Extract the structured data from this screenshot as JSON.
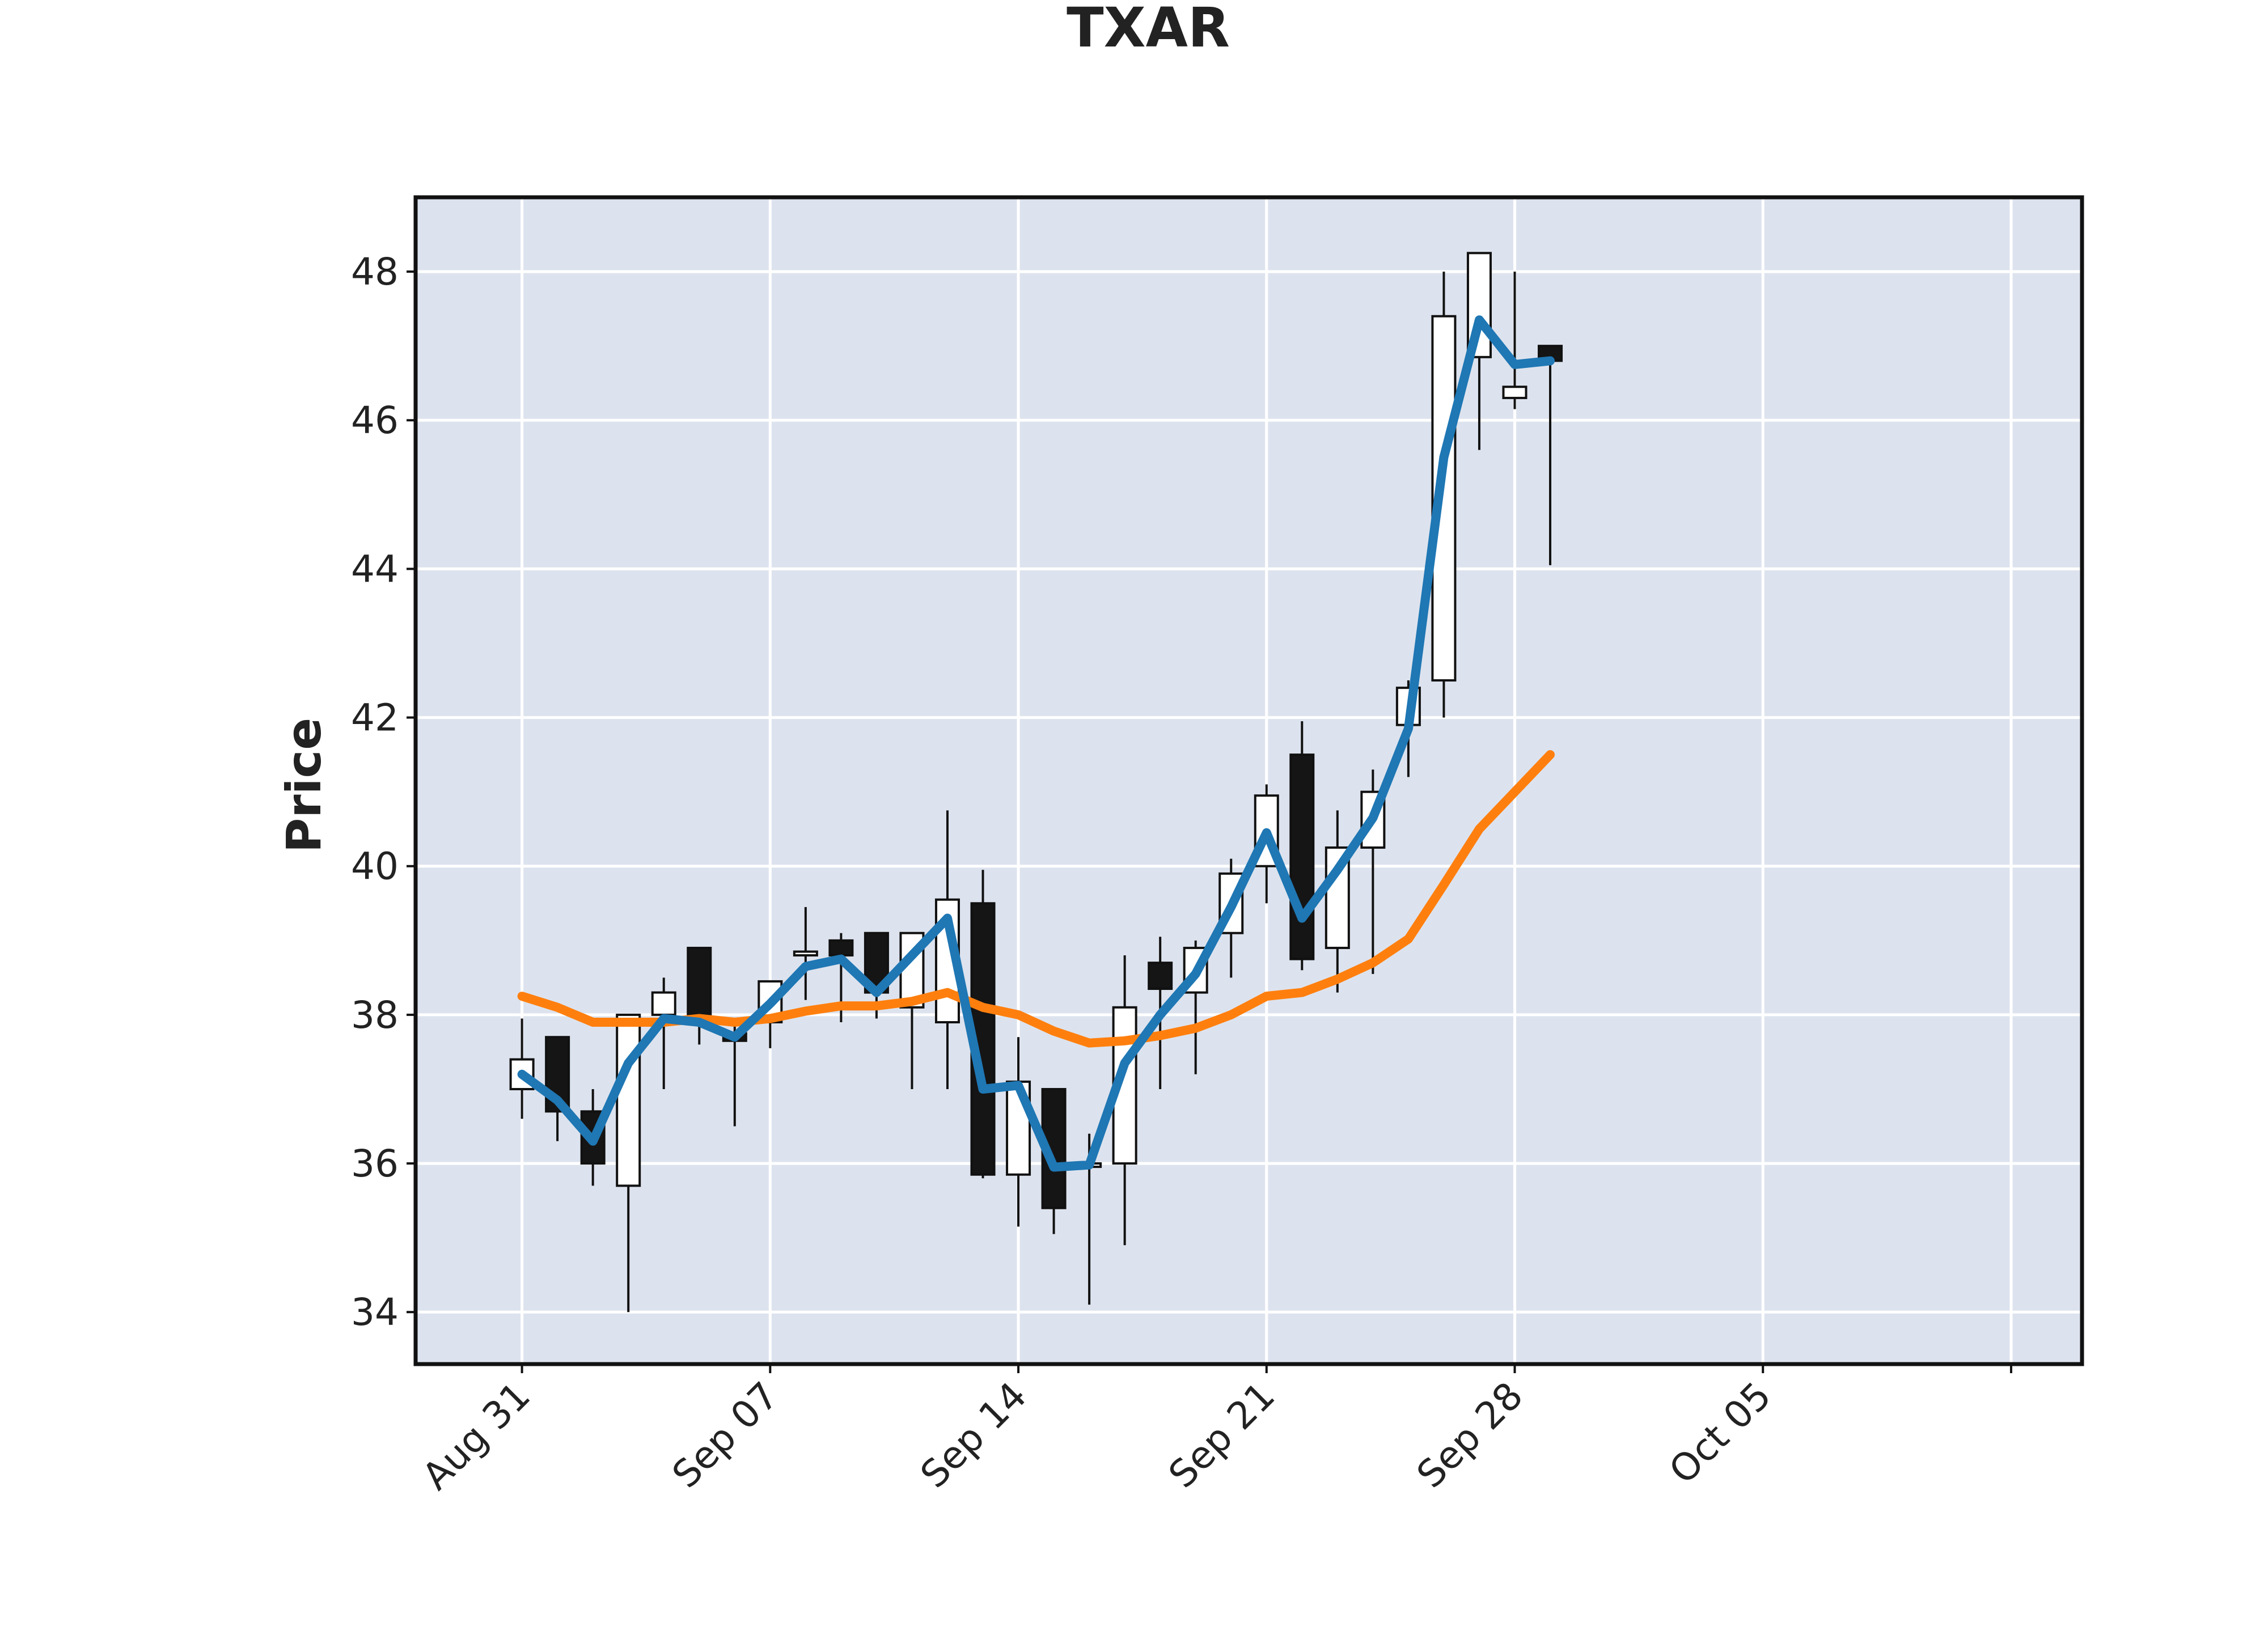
{
  "chart_data": {
    "type": "candlestick",
    "title": "TXAR",
    "ylabel": "Price",
    "xlabel": "",
    "ylim": [
      33.3,
      49.0
    ],
    "xlim": [
      "2020-08-28",
      "2020-10-14"
    ],
    "yticks": [
      34,
      36,
      38,
      40,
      42,
      44,
      46,
      48
    ],
    "xticks": [
      {
        "date": "2020-08-31",
        "label": "Aug 31"
      },
      {
        "date": "2020-09-07",
        "label": "Sep 07"
      },
      {
        "date": "2020-09-14",
        "label": "Sep 14"
      },
      {
        "date": "2020-09-21",
        "label": "Sep 21"
      },
      {
        "date": "2020-09-28",
        "label": "Sep 28"
      },
      {
        "date": "2020-10-05",
        "label": "Oct 05"
      }
    ],
    "grid": true,
    "colors": {
      "background": "#dde3ee",
      "up_body": "#ffffff",
      "down_body": "#151515",
      "ma_short": "#1f77b4",
      "ma_long": "#ff7f0e"
    },
    "candles": [
      {
        "date": "2020-08-31",
        "open": 37.0,
        "high": 37.95,
        "low": 36.6,
        "close": 37.4
      },
      {
        "date": "2020-09-01",
        "open": 37.7,
        "high": 37.7,
        "low": 36.3,
        "close": 36.7
      },
      {
        "date": "2020-09-02",
        "open": 36.7,
        "high": 37.0,
        "low": 35.7,
        "close": 36.0
      },
      {
        "date": "2020-09-03",
        "open": 35.7,
        "high": 38.0,
        "low": 34.0,
        "close": 38.0
      },
      {
        "date": "2020-09-04",
        "open": 38.0,
        "high": 38.5,
        "low": 37.0,
        "close": 38.3
      },
      {
        "date": "2020-09-05",
        "open": 38.9,
        "high": 38.9,
        "low": 37.6,
        "close": 37.9
      },
      {
        "date": "2020-09-06",
        "open": 37.75,
        "high": 37.9,
        "low": 36.5,
        "close": 37.65
      },
      {
        "date": "2020-09-07",
        "open": 37.9,
        "high": 38.45,
        "low": 37.55,
        "close": 38.45
      },
      {
        "date": "2020-09-08",
        "open": 38.8,
        "high": 39.45,
        "low": 38.2,
        "close": 38.85
      },
      {
        "date": "2020-09-09",
        "open": 39.0,
        "high": 39.1,
        "low": 37.9,
        "close": 38.8
      },
      {
        "date": "2020-09-10",
        "open": 39.1,
        "high": 39.1,
        "low": 37.95,
        "close": 38.3
      },
      {
        "date": "2020-09-11",
        "open": 38.1,
        "high": 39.1,
        "low": 37.0,
        "close": 39.1
      },
      {
        "date": "2020-09-12",
        "open": 37.9,
        "high": 40.75,
        "low": 37.0,
        "close": 39.55
      },
      {
        "date": "2020-09-13",
        "open": 39.5,
        "high": 39.95,
        "low": 35.8,
        "close": 35.85
      },
      {
        "date": "2020-09-14",
        "open": 35.85,
        "high": 37.7,
        "low": 35.15,
        "close": 37.1
      },
      {
        "date": "2020-09-15",
        "open": 37.0,
        "high": 37.0,
        "low": 35.05,
        "close": 35.4
      },
      {
        "date": "2020-09-16",
        "open": 36.0,
        "high": 36.4,
        "low": 34.1,
        "close": 36.0
      },
      {
        "date": "2020-09-17",
        "open": 36.0,
        "high": 38.8,
        "low": 34.9,
        "close": 38.1
      },
      {
        "date": "2020-09-18",
        "open": 38.7,
        "high": 39.05,
        "low": 37.0,
        "close": 38.35
      },
      {
        "date": "2020-09-19",
        "open": 38.3,
        "high": 39.0,
        "low": 37.2,
        "close": 38.9
      },
      {
        "date": "2020-09-20",
        "open": 39.1,
        "high": 40.1,
        "low": 38.5,
        "close": 39.9
      },
      {
        "date": "2020-09-21",
        "open": 40.0,
        "high": 41.1,
        "low": 39.5,
        "close": 40.95
      },
      {
        "date": "2020-09-22",
        "open": 41.5,
        "high": 41.95,
        "low": 38.6,
        "close": 38.75
      },
      {
        "date": "2020-09-23",
        "open": 38.9,
        "high": 40.75,
        "low": 38.3,
        "close": 40.25
      },
      {
        "date": "2020-09-24",
        "open": 40.25,
        "high": 41.3,
        "low": 38.55,
        "close": 41.0
      },
      {
        "date": "2020-09-25",
        "open": 41.9,
        "high": 42.5,
        "low": 41.2,
        "close": 42.4
      },
      {
        "date": "2020-09-26",
        "open": 42.5,
        "high": 48.0,
        "low": 42.0,
        "close": 47.4
      },
      {
        "date": "2020-09-27",
        "open": 46.85,
        "high": 48.25,
        "low": 45.6,
        "close": 48.25
      },
      {
        "date": "2020-09-28",
        "open": 46.3,
        "high": 48.0,
        "low": 46.15,
        "close": 46.45
      },
      {
        "date": "2020-09-29",
        "open": 47.0,
        "high": 47.0,
        "low": 44.05,
        "close": 46.8
      }
    ],
    "series": [
      {
        "values": [
          37.2,
          36.85,
          36.3,
          37.35,
          37.95,
          37.9,
          37.7,
          38.15,
          38.65,
          38.75,
          38.3,
          38.8,
          39.3,
          37.0,
          37.05,
          35.95,
          35.98,
          37.35,
          38.0,
          38.55,
          39.45,
          40.45,
          39.3,
          39.95,
          40.65,
          41.85,
          45.5,
          47.35,
          46.75,
          46.8
        ]
      },
      {
        "values": [
          38.25,
          38.1,
          37.9,
          37.9,
          37.9,
          37.95,
          37.9,
          37.95,
          38.05,
          38.12,
          38.12,
          38.18,
          38.3,
          38.1,
          38.0,
          37.78,
          37.62,
          37.65,
          37.72,
          37.82,
          38.0,
          38.25,
          38.3,
          38.48,
          38.7,
          39.02,
          39.75,
          40.5,
          41.0,
          41.5
        ]
      }
    ]
  }
}
